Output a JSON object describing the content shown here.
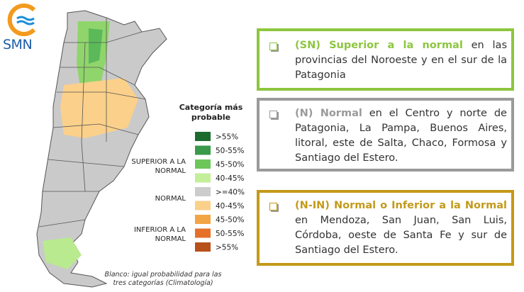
{
  "logo": {
    "text": "SMN"
  },
  "legend": {
    "title": "Categoría más probable",
    "groups": [
      "SUPERIOR A LA NORMAL",
      "NORMAL",
      "INFERIOR A LA NORMAL"
    ],
    "items": [
      {
        "label": ">55%",
        "color": "#1e6b30"
      },
      {
        "label": "50-55%",
        "color": "#3a9a4a"
      },
      {
        "label": "45-50%",
        "color": "#6cc65a"
      },
      {
        "label": "40-45%",
        "color": "#c3ee9a"
      },
      {
        "label": ">=40%",
        "color": "#cccccc"
      },
      {
        "label": "40-45%",
        "color": "#fbd08a"
      },
      {
        "label": "45-50%",
        "color": "#f3a445"
      },
      {
        "label": "50-55%",
        "color": "#e6702a"
      },
      {
        "label": ">55%",
        "color": "#b8501a"
      }
    ]
  },
  "note": "Blanco: igual probabilidad para las tres categorías (Climatología)",
  "boxes": [
    {
      "heading": "(SN) Superior a la normal",
      "text": " en las provincias del Noroeste y en el sur de la Patagonia",
      "color": "#8dc63f"
    },
    {
      "heading": "(N) Normal",
      "text": " en el Centro y norte de Patagonia, La Pampa, Buenos Aires, litoral, este de Salta, Chaco, Formosa y Santiago del Estero.",
      "color": "#9a9a9a"
    },
    {
      "heading": "(N-IN) Normal o Inferior a la Normal",
      "text": " en Mendoza, San Juan, San Luis, Córdoba, oeste de Santa Fe y sur de Santiago del Estero.",
      "color": "#c39a1a"
    }
  ]
}
